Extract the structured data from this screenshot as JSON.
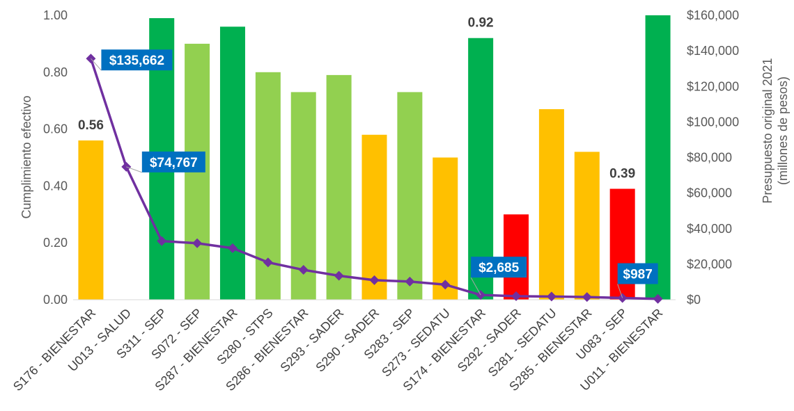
{
  "chart_data": {
    "type": "bar",
    "categories": [
      "S176 - BIENESTAR",
      "U013 - SALUD",
      "S311 - SEP",
      "S072 - SEP",
      "S287 - BIENESTAR",
      "S280 - STPS",
      "S286 - BIENESTAR",
      "S293 - SADER",
      "S290 - SADER",
      "S283 - SEP",
      "S273 - SEDATU",
      "S174 - BIENESTAR",
      "S292 - SADER",
      "S281 - SEDATU",
      "S285 - BIENESTAR",
      "U083 - SEP",
      "U011 - BIENESTAR"
    ],
    "series": [
      {
        "kind": "bar",
        "axis": "left",
        "values": [
          0.56,
          null,
          0.99,
          0.9,
          0.96,
          0.8,
          0.73,
          0.79,
          0.58,
          0.73,
          0.5,
          0.92,
          0.3,
          0.67,
          0.52,
          0.39,
          1.0
        ],
        "colors": [
          "#FFC000",
          null,
          "#00B050",
          "#92D050",
          "#00B050",
          "#92D050",
          "#92D050",
          "#92D050",
          "#FFC000",
          "#92D050",
          "#FFC000",
          "#00B050",
          "#FF0000",
          "#FFC000",
          "#FFC000",
          "#FF0000",
          "#00B050"
        ]
      },
      {
        "kind": "line",
        "axis": "right",
        "color": "#7030A0",
        "values": [
          135662,
          74767,
          33000,
          31800,
          29000,
          21000,
          16800,
          13500,
          11000,
          10200,
          8500,
          2685,
          2000,
          1800,
          1500,
          987,
          500
        ]
      }
    ],
    "bar_labels": [
      {
        "index": 0,
        "text": "0.56"
      },
      {
        "index": 11,
        "text": "0.92"
      },
      {
        "index": 15,
        "text": "0.39"
      }
    ],
    "callouts": [
      {
        "index": 0,
        "text": "$135,662"
      },
      {
        "index": 1,
        "text": "$74,767"
      },
      {
        "index": 11,
        "text": "$2,685"
      },
      {
        "index": 15,
        "text": "$987"
      }
    ],
    "ylabel_left": "Cumplimiento efectivo",
    "ylabel_right": [
      "Presupuesto original 2021",
      "(millones de pesos)"
    ],
    "ylim_left": [
      0,
      1
    ],
    "ylim_right": [
      0,
      160000
    ],
    "yticks_left": [
      "1.00",
      "0.80",
      "0.60",
      "0.40",
      "0.20",
      "0.00"
    ],
    "yticks_left_values": [
      1,
      0.8,
      0.6,
      0.4,
      0.2,
      0
    ],
    "yticks_right": [
      "$160,000",
      "$140,000",
      "$120,000",
      "$100,000",
      "$80,000",
      "$60,000",
      "$40,000",
      "$20,000",
      "$0"
    ],
    "yticks_right_values": [
      160000,
      140000,
      120000,
      100000,
      80000,
      60000,
      40000,
      20000,
      0
    ],
    "grid": false,
    "legend": "none",
    "callout_color": "#0070C0"
  }
}
